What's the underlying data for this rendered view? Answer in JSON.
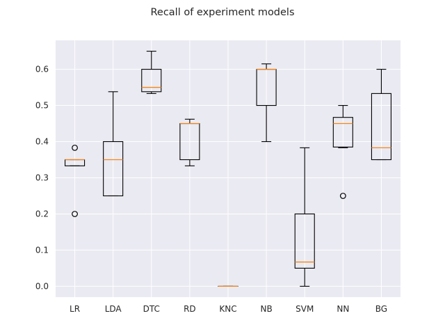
{
  "chart_data": {
    "type": "box",
    "title": "Recall of experiment models",
    "xlabel": "",
    "ylabel": "",
    "ylim": [
      -0.03,
      0.68
    ],
    "yticks": [
      0.0,
      0.1,
      0.2,
      0.3,
      0.4,
      0.5,
      0.6
    ],
    "ytick_labels": [
      "0.0",
      "0.1",
      "0.2",
      "0.3",
      "0.4",
      "0.5",
      "0.6"
    ],
    "grid": true,
    "legend": "none",
    "colors": {
      "axes_bg": "#eaeaf2",
      "grid": "#ffffff",
      "box": "#000000",
      "median": "#f58518"
    },
    "categories": [
      "LR",
      "LDA",
      "DTC",
      "RD",
      "KNC",
      "NB",
      "SVM",
      "NN",
      "BG"
    ],
    "boxes": [
      {
        "label": "LR",
        "whisker_low": 0.333,
        "q1": 0.333,
        "median": 0.35,
        "q3": 0.35,
        "whisker_high": 0.35,
        "outliers": [
          0.2,
          0.383
        ]
      },
      {
        "label": "LDA",
        "whisker_low": 0.25,
        "q1": 0.25,
        "median": 0.35,
        "q3": 0.4,
        "whisker_high": 0.538,
        "outliers": []
      },
      {
        "label": "DTC",
        "whisker_low": 0.533,
        "q1": 0.538,
        "median": 0.55,
        "q3": 0.6,
        "whisker_high": 0.65,
        "outliers": []
      },
      {
        "label": "RD",
        "whisker_low": 0.333,
        "q1": 0.35,
        "median": 0.45,
        "q3": 0.45,
        "whisker_high": 0.462,
        "outliers": []
      },
      {
        "label": "KNC",
        "whisker_low": 0.0,
        "q1": 0.0,
        "median": 0.0,
        "q3": 0.0,
        "whisker_high": 0.0,
        "outliers": []
      },
      {
        "label": "NB",
        "whisker_low": 0.4,
        "q1": 0.5,
        "median": 0.6,
        "q3": 0.6,
        "whisker_high": 0.615,
        "outliers": []
      },
      {
        "label": "SVM",
        "whisker_low": 0.0,
        "q1": 0.05,
        "median": 0.067,
        "q3": 0.2,
        "whisker_high": 0.383,
        "outliers": []
      },
      {
        "label": "NN",
        "whisker_low": 0.383,
        "q1": 0.385,
        "median": 0.45,
        "q3": 0.467,
        "whisker_high": 0.5,
        "outliers": [
          0.25
        ]
      },
      {
        "label": "BG",
        "whisker_low": 0.35,
        "q1": 0.35,
        "median": 0.383,
        "q3": 0.533,
        "whisker_high": 0.6,
        "outliers": []
      }
    ]
  }
}
